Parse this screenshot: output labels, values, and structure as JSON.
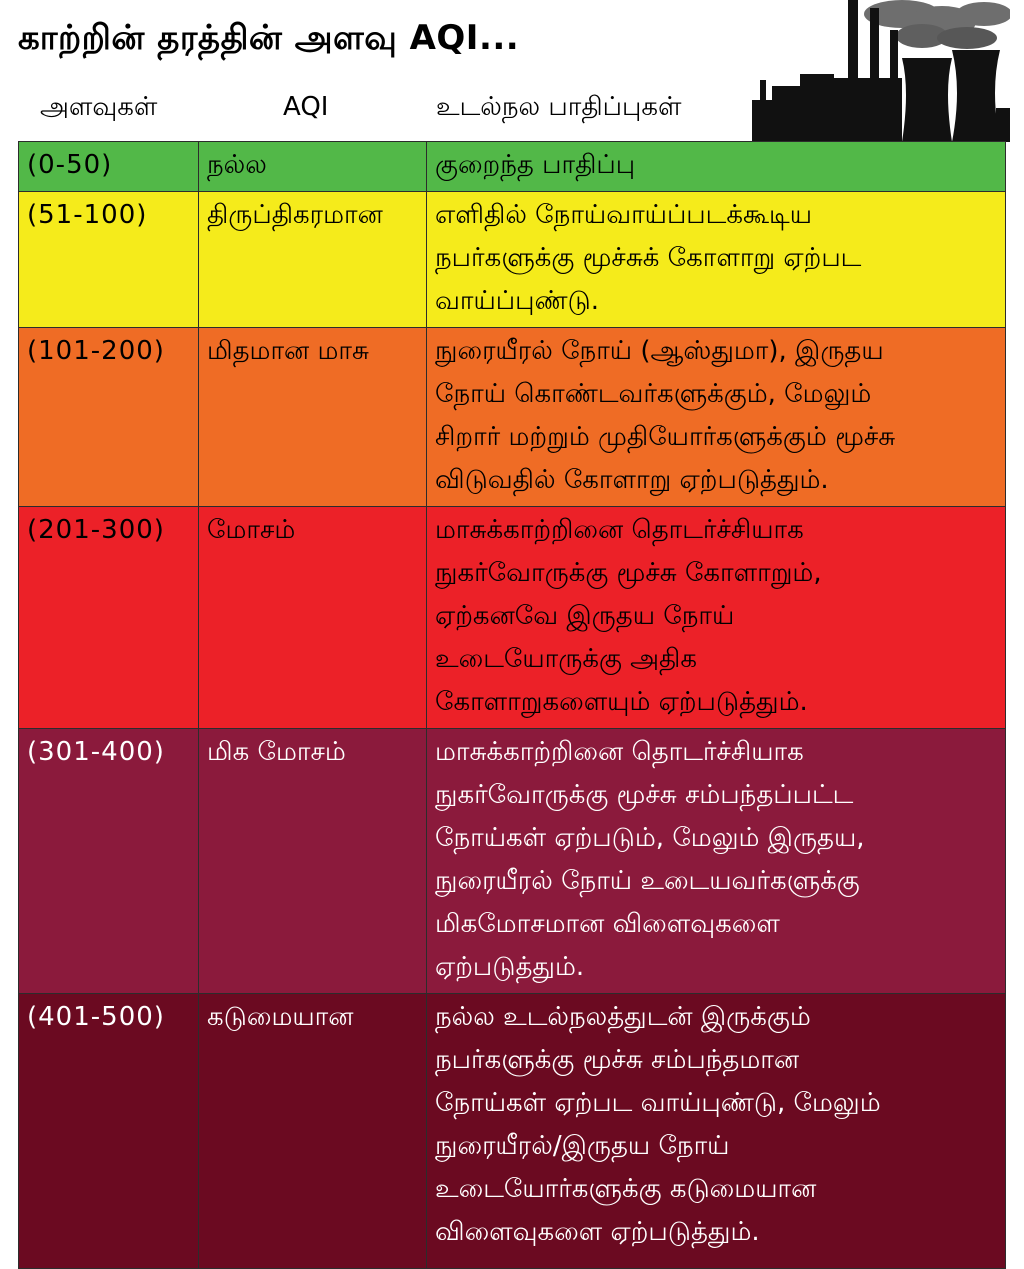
{
  "title": "காற்றின் தரத்தின் அளவு AQI...",
  "headers": {
    "levels": "அளவுகள்",
    "aqi": "AQI",
    "effects": "உடல்நல பாதிப்புகள்"
  },
  "illustration": "factory-smokestack-silhouette",
  "colors": {
    "good": "#52b848",
    "satisfactory": "#f5eb1b",
    "moderate": "#ef6c25",
    "poor": "#ec2128",
    "very_poor": "#8b1a3c",
    "severe": "#6b0a21"
  },
  "rows": [
    {
      "range": "(0-50)",
      "category": "நல்ல",
      "effects": [
        "குறைந்த  பாதிப்பு"
      ]
    },
    {
      "range": "(51-100)",
      "category": "திருப்திகரமான",
      "effects": [
        "எளிதில் நோய்வாய்ப்படக்கூடிய",
        "நபர்களுக்கு மூச்சுக் கோளாறு ஏற்பட",
        "வாய்ப்புண்டு."
      ]
    },
    {
      "range": "(101-200)",
      "category": "மிதமான  மாசு",
      "effects": [
        "நுரையீரல் நோய் (ஆஸ்துமா), இருதய",
        "நோய் கொண்டவர்களுக்கும், மேலும்",
        "சிறார் மற்றும் முதியோர்களுக்கும் மூச்சு",
        "விடுவதில் கோளாறு ஏற்படுத்தும்."
      ]
    },
    {
      "range": "(201-300)",
      "category": "மோசம்",
      "effects": [
        "மாசுக்காற்றினை தொடர்ச்சியாக",
        "நுகர்வோருக்கு மூச்சு கோளாறும்,",
        "ஏற்கனவே இருதய நோய்",
        "உடையோருக்கு அதிக",
        "கோளாறுகளையும் ஏற்படுத்தும்."
      ]
    },
    {
      "range": "(301-400)",
      "category": "மிக மோசம்",
      "effects": [
        "மாசுக்காற்றினை தொடர்ச்சியாக",
        "நுகர்வோருக்கு மூச்சு சம்பந்தப்பட்ட",
        "நோய்கள் ஏற்படும், மேலும் இருதய,",
        "நுரையீரல் நோய் உடையவர்களுக்கு",
        "மிகமோசமான விளைவுகளை",
        "ஏற்படுத்தும்."
      ]
    },
    {
      "range": "(401-500)",
      "category": "கடுமையான",
      "effects": [
        "நல்ல உடல்நலத்துடன்  இருக்கும்",
        "நபர்களுக்கு  மூச்சு  சம்பந்தமான",
        "நோய்கள்  ஏற்பட  வாய்புண்டு,  மேலும்",
        "நுரையீரல்/இருதய  நோய்",
        "உடையோர்களுக்கு  கடுமையான",
        "விளைவுகளை  ஏற்படுத்தும்."
      ]
    }
  ]
}
